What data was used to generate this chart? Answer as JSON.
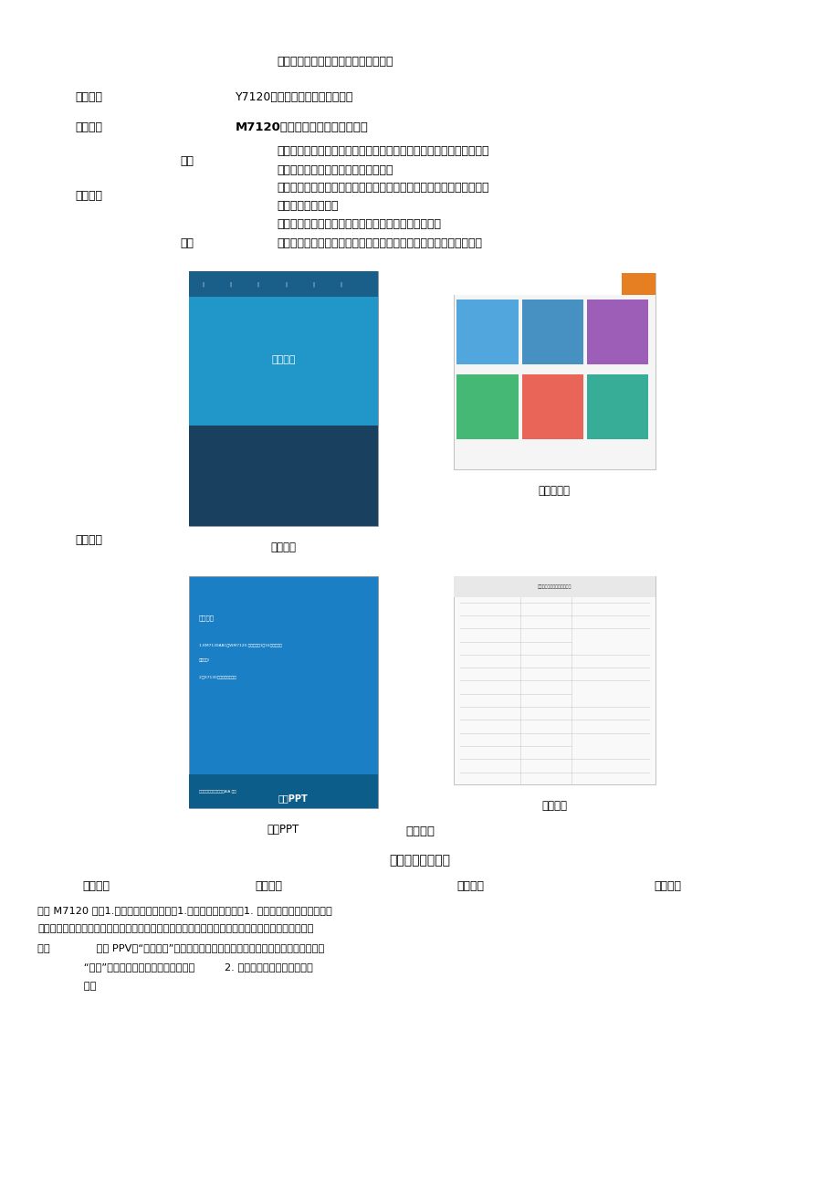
{
  "bg_color": "#ffffff",
  "page_width": 9.2,
  "page_height": 13.01,
  "top_text1": "兿学生具有解决实际问题的工作能力。",
  "label_jxzd": "教学重点",
  "val_jxzd": "Y7120磨床电气控制系统故障诊断",
  "label_jxnd": "教学难点",
  "val_jxnd": "M7120磨床电气控制系统故障排除",
  "label_jxff": "教学方法",
  "label_jf": "教法",
  "label_xf": "学法",
  "jf_line1": "线上线下的混合教学模式，老师推送在线教学资源，布置作业，利用问",
  "jf_line2": "题引导学生开展课前预习，课后复习。",
  "jf_line3": "利用任务驱动法，俱真教学法，让学生有目的地完成一个个学习任务，",
  "jf_line4": "最终达到设定目标。",
  "jf_line5": "小组合作法，合作探究法，相互探讨问题，解决问题。",
  "xf_line1": "课前课后，自主学习法，预习复习，总结对本节课内容学习的收获。",
  "label_jxzy": "教学资源",
  "img1_label": "智慧校园",
  "img2_label": "培训网平台",
  "img3_label": "授课PPT",
  "img4_label": "电子教案",
  "act_label": "教学活动",
  "section1": "一、课前自学阶段",
  "col1": "教学内容",
  "col2": "教师活动",
  "col3": "学生活动",
  "col4": "设计意图",
  "body1": "学习 M7120 磨兗1.教师利用网络平台发布1.接受任务：学生接受1. 在课前明确学习任务，让学",
  "body2": "电气控制系统故障习任务，并将课前学习资源习任务，并上网搜索电动生在接下来的学习中带着目的",
  "body3": "排除              授课 PPV、“电子教案”机正反转元件检测与布置去学习，使得学习具有方向性",
  "body4": "              “微课”视频上传到智慧校的相关知识。         2. 培兿学生获取信息的能力。",
  "body5": "              园。"
}
